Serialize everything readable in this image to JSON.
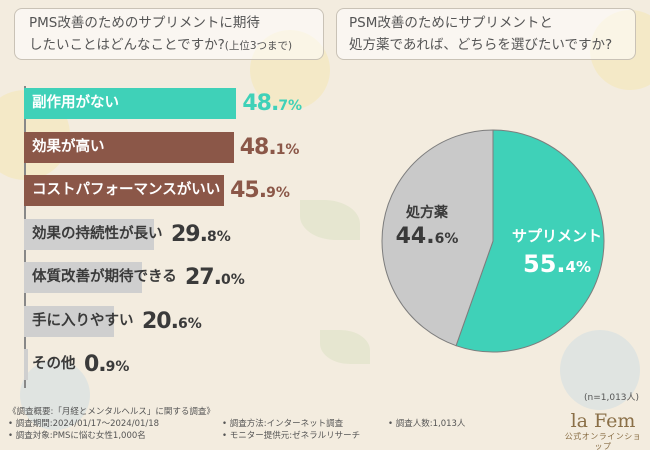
{
  "left_panel": {
    "title_line1": "PMS改善のためのサプリメントに期待",
    "title_line2": "したいことはどんなことですか?",
    "title_note": "(上位3つまで)"
  },
  "right_panel": {
    "title_line1": "PSM改善のためにサプリメントと",
    "title_line2": "処方薬であれば、どちらを選びたいですか?",
    "n_note": "(n=1,013人)"
  },
  "chart_data": [
    {
      "type": "bar",
      "orientation": "horizontal",
      "categories": [
        "副作用がない",
        "効果が高い",
        "コストパフォーマンスがいい",
        "効果の持続性が長い",
        "体質改善が期待できる",
        "手に入りやすい",
        "その他"
      ],
      "values": [
        48.7,
        48.1,
        45.9,
        29.8,
        27.0,
        20.6,
        0.9
      ],
      "value_labels": [
        {
          "int": "48.",
          "dec": "7%"
        },
        {
          "int": "48.",
          "dec": "1%"
        },
        {
          "int": "45.",
          "dec": "9%"
        },
        {
          "int": "29.",
          "dec": "8%"
        },
        {
          "int": "27.",
          "dec": "0%"
        },
        {
          "int": "20.",
          "dec": "6%"
        },
        {
          "int": "0.",
          "dec": "9%"
        }
      ],
      "bar_colors": [
        "#3fd1b8",
        "#8b5748",
        "#8b5748",
        "#cfcfcf",
        "#cfcfcf",
        "#cfcfcf",
        "#cfcfcf"
      ],
      "label_colors": [
        "#ffffff",
        "#ffffff",
        "#ffffff",
        "#3a3a3a",
        "#3a3a3a",
        "#3a3a3a",
        "#3a3a3a"
      ],
      "value_colors": [
        "#3fd1b8",
        "#8b5748",
        "#8b5748",
        "#3a3a3a",
        "#3a3a3a",
        "#3a3a3a",
        "#3a3a3a"
      ],
      "unit": "%"
    },
    {
      "type": "pie",
      "slices": [
        {
          "label": "サプリメント",
          "value": 55.4,
          "value_label": {
            "int": "55.",
            "dec": "4%"
          },
          "color": "#3fd1b8",
          "text_color": "#ffffff"
        },
        {
          "label": "処方薬",
          "value": 44.6,
          "value_label": {
            "int": "44.",
            "dec": "6%"
          },
          "color": "#c9c9c9",
          "text_color": "#3a3a3a"
        }
      ],
      "edge_color": "#7d7d7d"
    }
  ],
  "footer": {
    "survey_outline": "《調査概要:「月経とメンタルヘルス」に関する調査》",
    "period": "• 調査期間:2024/01/17〜2024/01/18",
    "target": "• 調査対象:PMSに悩む女性1,000名",
    "method": "• 調査方法:インターネット調査",
    "provider": "• モニター提供元:ゼネラルリサーチ",
    "count": "• 調査人数:1,013人"
  },
  "logo": {
    "name": "la Fem",
    "sub": "公式オンラインショップ"
  }
}
